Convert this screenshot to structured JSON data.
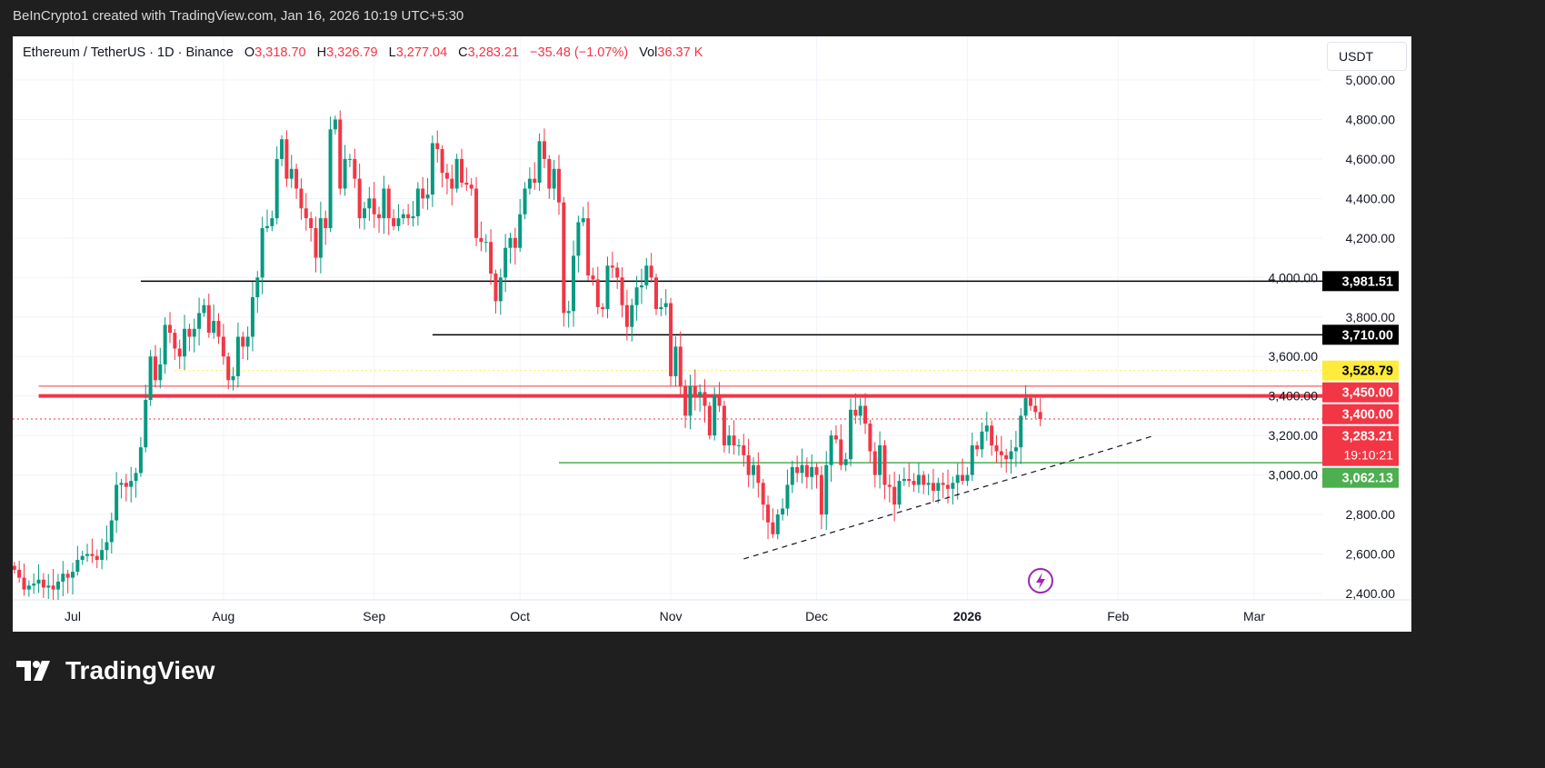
{
  "header": {
    "attribution": "BeInCrypto1 created with TradingView.com, Jan 16, 2026 10:19 UTC+5:30"
  },
  "legend": {
    "symbol": "Ethereum / TetherUS · 1D · Binance",
    "o_label": "O",
    "o": "3,318.70",
    "h_label": "H",
    "h": "3,326.79",
    "l_label": "L",
    "l": "3,277.04",
    "c_label": "C",
    "c": "3,283.21",
    "change": "−35.48 (−1.07%)",
    "vol_label": "Vol",
    "vol": "36.37 K"
  },
  "currency": "USDT",
  "footer": {
    "brand": "TradingView",
    "logo_icon": "tradingview-logo-icon"
  },
  "colors": {
    "up": "#089981",
    "down": "#f23645",
    "support": "#4caf50",
    "highlight": "#ffeb3b",
    "level": "#000000"
  },
  "chart_data": {
    "type": "candlestick",
    "interval": "1D",
    "start_date": "2025-06-19",
    "close": [
      2520,
      2480,
      2420,
      2440,
      2450,
      2470,
      2430,
      2440,
      2420,
      2460,
      2500,
      2480,
      2510,
      2570,
      2590,
      2600,
      2590,
      2570,
      2620,
      2660,
      2770,
      2950,
      2960,
      2940,
      2970,
      3010,
      3140,
      3380,
      3600,
      3480,
      3560,
      3760,
      3720,
      3640,
      3600,
      3740,
      3700,
      3740,
      3820,
      3860,
      3720,
      3780,
      3700,
      3600,
      3480,
      3500,
      3700,
      3650,
      3700,
      3900,
      4000,
      4250,
      4260,
      4300,
      4600,
      4700,
      4500,
      4550,
      4450,
      4350,
      4300,
      4250,
      4100,
      4300,
      4250,
      4750,
      4800,
      4450,
      4600,
      4600,
      4500,
      4300,
      4350,
      4400,
      4320,
      4300,
      4450,
      4300,
      4260,
      4300,
      4320,
      4300,
      4310,
      4450,
      4400,
      4420,
      4680,
      4650,
      4530,
      4500,
      4450,
      4600,
      4480,
      4470,
      4450,
      4200,
      4180,
      4180,
      4020,
      3880,
      4000,
      4150,
      4200,
      4150,
      4320,
      4450,
      4500,
      4480,
      4690,
      4600,
      4450,
      4550,
      4380,
      3820,
      3830,
      4110,
      4280,
      4300,
      4010,
      3990,
      3850,
      3840,
      4060,
      4050,
      4000,
      3860,
      3750,
      3860,
      3950,
      3960,
      4060,
      4000,
      3840,
      3850,
      3870,
      3500,
      3650,
      3450,
      3300,
      3450,
      3400,
      3420,
      3350,
      3200,
      3400,
      3350,
      3150,
      3200,
      3150,
      3150,
      3100,
      3000,
      3050,
      2960,
      2850,
      2760,
      2700,
      2800,
      2830,
      2950,
      3040,
      3010,
      3050,
      2990,
      3040,
      3000,
      2800,
      3050,
      3200,
      3180,
      3050,
      3080,
      3330,
      3300,
      3350,
      3260,
      3120,
      3000,
      3150,
      2950,
      2940,
      2850,
      2970,
      2980,
      2970,
      2950,
      3000,
      2950,
      2960,
      2920,
      2960,
      2950,
      2930,
      2960,
      3000,
      2970,
      3000,
      3150,
      3130,
      3220,
      3250,
      3150,
      3120,
      3100,
      3080,
      3120,
      3140,
      3300,
      3390,
      3350,
      3318.7,
      3283.21
    ],
    "ylim": [
      2400,
      5000
    ],
    "y_ticks": [
      "2,400.00",
      "2,600.00",
      "2,800.00",
      "3,000.00",
      "3,200.00",
      "3,400.00",
      "3,600.00",
      "3,800.00",
      "4,000.00",
      "4,200.00",
      "4,400.00",
      "4,600.00",
      "4,800.00",
      "5,000.00"
    ],
    "x_ticks": [
      {
        "label": "Jul",
        "date": "2025-07-01"
      },
      {
        "label": "Aug",
        "date": "2025-08-01"
      },
      {
        "label": "Sep",
        "date": "2025-09-01"
      },
      {
        "label": "Oct",
        "date": "2025-10-01"
      },
      {
        "label": "Nov",
        "date": "2025-11-01"
      },
      {
        "label": "Dec",
        "date": "2025-12-01"
      },
      {
        "label": "2026",
        "date": "2026-01-01",
        "bold": true
      },
      {
        "label": "Feb",
        "date": "2026-02-01"
      },
      {
        "label": "Mar",
        "date": "2026-03-01"
      }
    ],
    "levels": [
      {
        "price": 3981.51,
        "label": "3,981.51",
        "from": "2025-07-15",
        "style": "solid",
        "color": "#000000",
        "text_color": "#ffffff"
      },
      {
        "price": 3710.0,
        "label": "3,710.00",
        "from": "2025-09-13",
        "style": "solid",
        "color": "#000000",
        "text_color": "#ffffff"
      },
      {
        "price": 3528.79,
        "label": "3,528.79",
        "from": "2025-07-22",
        "style": "dotted",
        "color": "#ffeb3b",
        "text_color": "#000000"
      },
      {
        "price": 3450.0,
        "label": "3,450.00",
        "from": "2025-06-24",
        "style": "thin",
        "color": "#f23645",
        "text_color": "#ffffff"
      },
      {
        "price": 3400.0,
        "label": "3,400.00",
        "from": "2025-06-24",
        "style": "thick",
        "color": "#f23645",
        "text_color": "#ffffff"
      },
      {
        "price": 3283.21,
        "label": "3,283.21",
        "countdown": "19:10:21",
        "style": "dotted",
        "color": "#f23645",
        "text_color": "#ffffff"
      },
      {
        "price": 3062.13,
        "label": "3,062.13",
        "from": "2025-10-09",
        "style": "solid",
        "color": "#4caf50",
        "text_color": "#ffffff"
      }
    ],
    "trendline": {
      "start": {
        "date": "2025-11-16",
        "price": 2575
      },
      "end": {
        "date": "2026-02-08",
        "price": 3196
      },
      "style": "dashed"
    }
  }
}
